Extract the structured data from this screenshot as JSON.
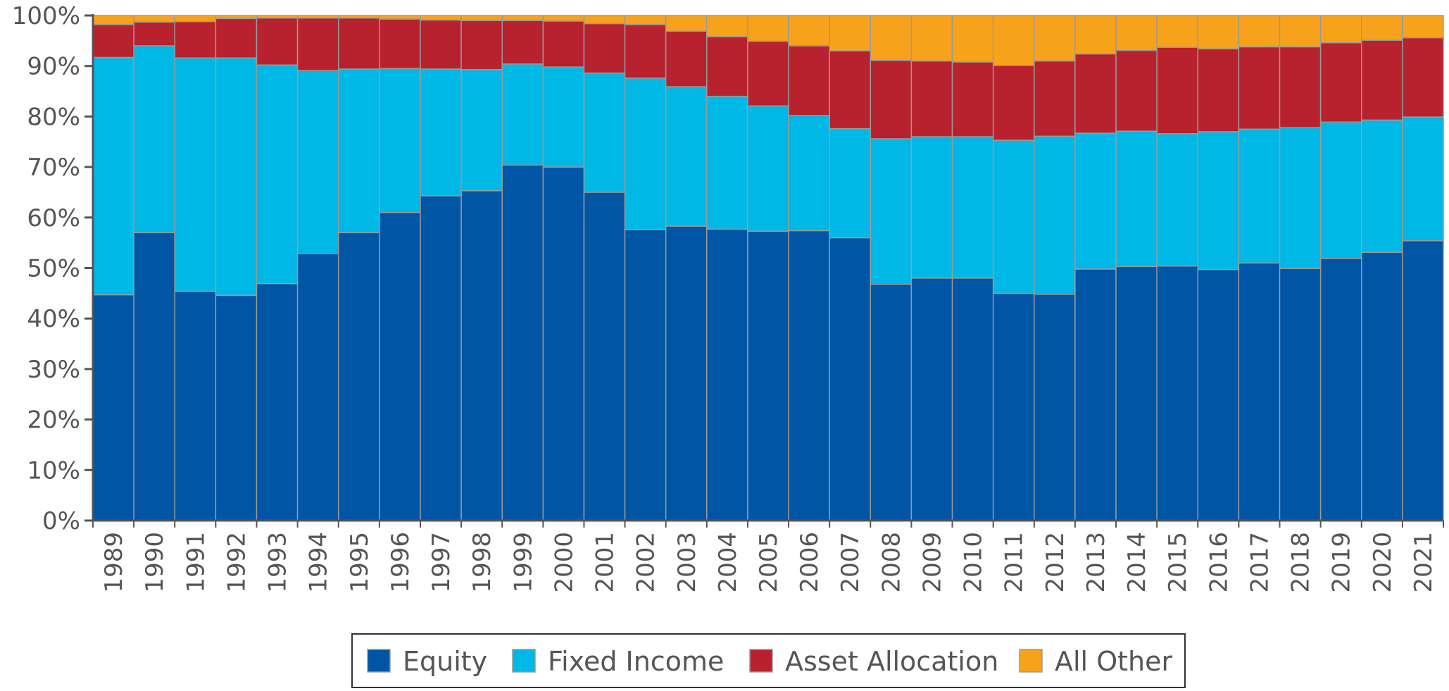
{
  "chart_data": {
    "type": "bar",
    "stacked": true,
    "normalized": true,
    "categories": [
      "1989",
      "1990",
      "1991",
      "1992",
      "1993",
      "1994",
      "1995",
      "1996",
      "1997",
      "1998",
      "1999",
      "2000",
      "2001",
      "2002",
      "2003",
      "2004",
      "2005",
      "2006",
      "2007",
      "2008",
      "2009",
      "2010",
      "2011",
      "2012",
      "2013",
      "2014",
      "2015",
      "2016",
      "2017",
      "2018",
      "2019",
      "2020",
      "2021"
    ],
    "series": [
      {
        "name": "Equity",
        "color": "#0055A4",
        "values": [
          44.7,
          57.0,
          45.4,
          44.6,
          46.9,
          52.9,
          57.0,
          61.0,
          64.3,
          65.3,
          70.4,
          70.0,
          65.0,
          57.6,
          58.3,
          57.7,
          57.3,
          57.4,
          56.0,
          46.8,
          48.0,
          48.0,
          45.0,
          44.8,
          49.8,
          50.3,
          50.4,
          49.7,
          51.0,
          49.9,
          51.9,
          53.1,
          55.4
        ]
      },
      {
        "name": "Fixed Income",
        "color": "#00B8E6",
        "values": [
          47.0,
          37.0,
          46.2,
          47.0,
          43.3,
          36.2,
          32.4,
          28.5,
          25.1,
          24.0,
          20.0,
          19.8,
          23.6,
          30.0,
          27.6,
          26.3,
          24.8,
          22.8,
          21.6,
          28.8,
          28.0,
          28.0,
          30.3,
          31.3,
          26.9,
          26.8,
          26.2,
          27.3,
          26.5,
          27.9,
          27.0,
          26.2,
          24.5
        ]
      },
      {
        "name": "Asset Allocation",
        "color": "#B8212E",
        "values": [
          6.5,
          4.7,
          7.2,
          7.8,
          9.3,
          10.4,
          10.1,
          9.8,
          9.7,
          9.7,
          8.6,
          9.1,
          9.8,
          10.6,
          11.0,
          11.8,
          12.8,
          13.8,
          15.4,
          15.5,
          15.0,
          14.8,
          14.8,
          14.9,
          15.7,
          16.0,
          17.1,
          16.4,
          16.3,
          16.0,
          15.7,
          15.8,
          15.7
        ]
      },
      {
        "name": "All Other",
        "color": "#F7A21B",
        "values": [
          1.8,
          1.3,
          1.2,
          0.6,
          0.5,
          0.5,
          0.5,
          0.7,
          0.9,
          1.0,
          1.0,
          1.1,
          1.6,
          1.8,
          3.1,
          4.2,
          5.1,
          6.0,
          7.0,
          8.9,
          9.0,
          9.2,
          9.9,
          9.0,
          7.6,
          6.9,
          6.3,
          6.6,
          6.2,
          6.2,
          5.4,
          4.9,
          4.4
        ]
      }
    ],
    "y_ticks": [
      "0%",
      "10%",
      "20%",
      "30%",
      "40%",
      "50%",
      "60%",
      "70%",
      "80%",
      "90%",
      "100%"
    ],
    "ylim": [
      0,
      100
    ],
    "legend_position": "bottom-center",
    "grid": false
  }
}
